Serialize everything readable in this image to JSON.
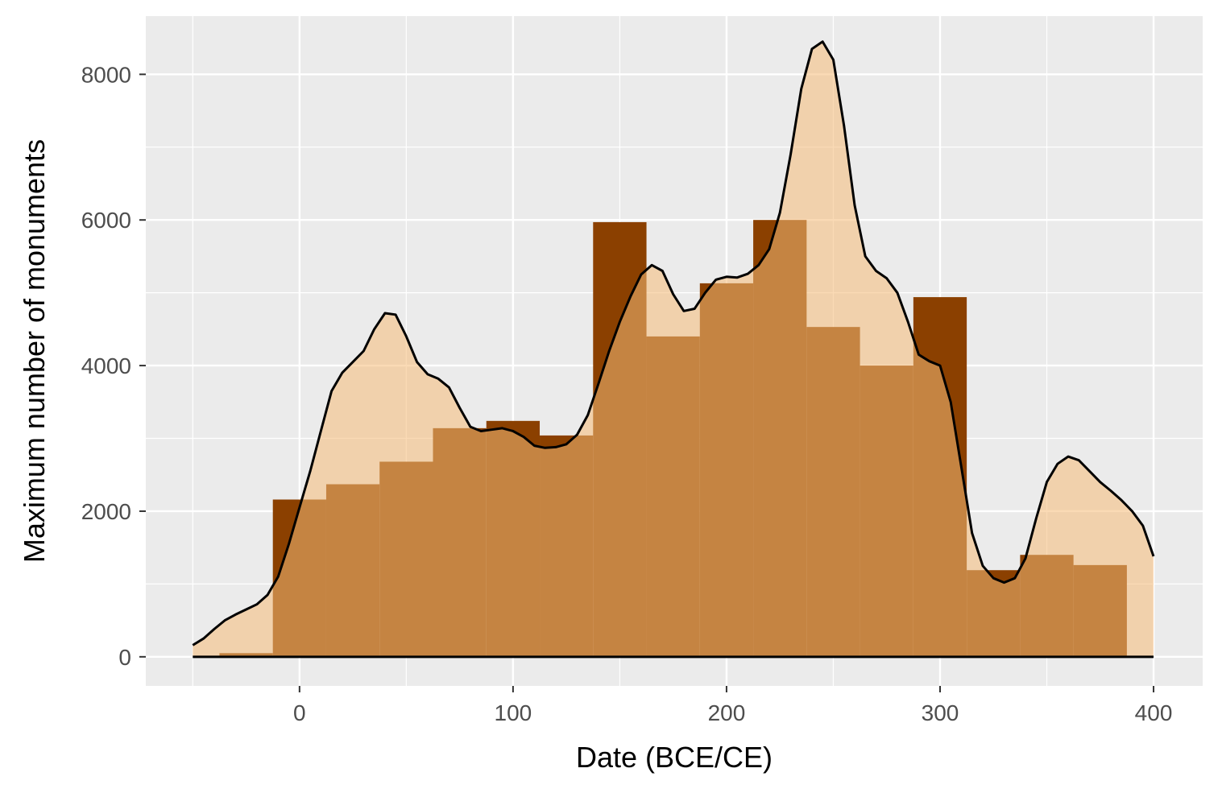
{
  "chart_data": {
    "type": "bar",
    "xlabel": "Date (BCE/CE)",
    "ylabel": "Maximum number of monuments",
    "xlim": [
      -72,
      423
    ],
    "ylim": [
      -400,
      8800
    ],
    "x_ticks": [
      0,
      100,
      200,
      300,
      400
    ],
    "y_ticks": [
      0,
      2000,
      4000,
      6000,
      8000
    ],
    "grid": true,
    "legend": "none",
    "colors": {
      "panel_background": "#ebebeb",
      "grid": "#ffffff",
      "histogram": "#8b4000",
      "density_area": "#f5bb78",
      "overlap": "#c56a04",
      "density_line": "#000000",
      "tick_text": "#4d4d4d"
    },
    "histogram": {
      "bin_edges": [
        -37.5,
        -12.5,
        12.5,
        37.5,
        62.5,
        87.5,
        112.5,
        137.5,
        162.5,
        187.5,
        212.5,
        237.5,
        262.5,
        287.5,
        312.5,
        337.5,
        362.5,
        387.5
      ],
      "counts": [
        50,
        2160,
        2370,
        2680,
        3140,
        3240,
        3040,
        5970,
        4400,
        5130,
        6000,
        4530,
        4000,
        4940,
        1190,
        1400,
        1260
      ]
    },
    "density": {
      "x": [
        -50,
        -45,
        -40,
        -35,
        -30,
        -25,
        -20,
        -15,
        -10,
        -5,
        0,
        5,
        10,
        15,
        20,
        25,
        30,
        35,
        40,
        45,
        50,
        55,
        60,
        65,
        70,
        75,
        80,
        85,
        90,
        95,
        100,
        105,
        110,
        115,
        120,
        125,
        130,
        135,
        140,
        145,
        150,
        155,
        160,
        165,
        170,
        175,
        180,
        185,
        190,
        195,
        200,
        205,
        210,
        215,
        220,
        225,
        230,
        235,
        240,
        245,
        250,
        255,
        260,
        265,
        270,
        275,
        280,
        285,
        290,
        295,
        300,
        305,
        310,
        315,
        320,
        325,
        330,
        335,
        340,
        345,
        350,
        355,
        360,
        365,
        370,
        375,
        380,
        385,
        390,
        395,
        400
      ],
      "y": [
        160,
        250,
        380,
        500,
        580,
        650,
        720,
        850,
        1100,
        1550,
        2050,
        2550,
        3100,
        3650,
        3900,
        4050,
        4200,
        4500,
        4720,
        4700,
        4400,
        4050,
        3880,
        3820,
        3700,
        3420,
        3160,
        3100,
        3120,
        3140,
        3100,
        3020,
        2900,
        2870,
        2880,
        2920,
        3050,
        3320,
        3750,
        4200,
        4600,
        4950,
        5250,
        5380,
        5300,
        4980,
        4750,
        4780,
        5000,
        5180,
        5220,
        5210,
        5260,
        5380,
        5600,
        6100,
        6900,
        7800,
        8350,
        8450,
        8200,
        7300,
        6200,
        5500,
        5300,
        5200,
        5000,
        4600,
        4150,
        4060,
        4000,
        3500,
        2600,
        1700,
        1250,
        1080,
        1020,
        1080,
        1350,
        1900,
        2400,
        2650,
        2750,
        2700,
        2550,
        2400,
        2280,
        2150,
        2000,
        1800,
        1380
      ]
    }
  }
}
